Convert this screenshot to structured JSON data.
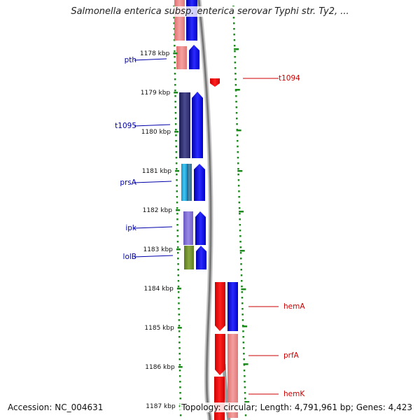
{
  "title": "Salmonella enterica subsp. enterica serovar Typhi str. Ty2, ...",
  "accession": "Accession: NC_004631",
  "summary": "Topology: circular; Length: 4,791,961 bp; Genes: 4,423",
  "ruler_ticks": [
    {
      "kbp": 1178,
      "label": "1178 kbp"
    },
    {
      "kbp": 1179,
      "label": "1179 kbp"
    },
    {
      "kbp": 1180,
      "label": "1180 kbp"
    },
    {
      "kbp": 1181,
      "label": "1181 kbp"
    },
    {
      "kbp": 1182,
      "label": "1182 kbp"
    },
    {
      "kbp": 1183,
      "label": "1183 kbp"
    },
    {
      "kbp": 1184,
      "label": "1184 kbp"
    },
    {
      "kbp": 1185,
      "label": "1185 kbp"
    },
    {
      "kbp": 1186,
      "label": "1186 kbp"
    },
    {
      "kbp": 1187,
      "label": "1187 kbp"
    }
  ],
  "colors": {
    "left_label": "#0000aa",
    "right_label": "#cc0000",
    "tick": "#1a8a1a",
    "backbone": "#8c8c8c",
    "forward_strand": "#0000ee",
    "reverse_strand": "#ee0000"
  },
  "genes_left": [
    {
      "name": "pth",
      "color": "#2a2a70"
    },
    {
      "name": "t1095",
      "color": "#2a2a70"
    },
    {
      "name": "prsA",
      "color": "#2aa8d8"
    },
    {
      "name": "ipk",
      "color": "#7a68d0"
    },
    {
      "name": "lolB",
      "color": "#6e8a2a"
    }
  ],
  "genes_right": [
    {
      "name": "t1094"
    },
    {
      "name": "hemA"
    },
    {
      "name": "prfA"
    },
    {
      "name": "hemK"
    }
  ]
}
